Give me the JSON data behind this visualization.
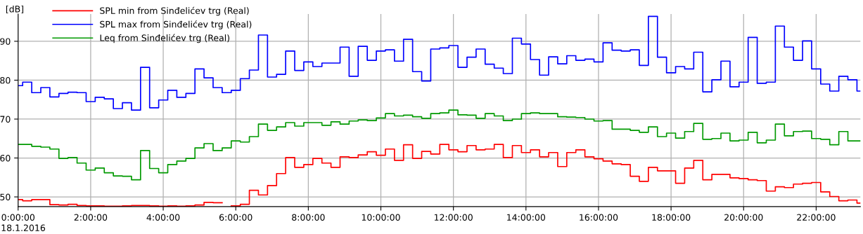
{
  "chart_data": {
    "type": "step",
    "ylabel": "[dB]",
    "x": [
      0,
      0.125,
      0.375,
      0.625,
      0.875,
      1.125,
      1.375,
      1.625,
      1.875,
      2.125,
      2.375,
      2.625,
      2.875,
      3.125,
      3.375,
      3.625,
      3.875,
      4.125,
      4.375,
      4.625,
      4.875,
      5.125,
      5.375,
      5.625,
      5.875,
      6.125,
      6.375,
      6.625,
      6.875,
      7.125,
      7.375,
      7.625,
      7.875,
      8.125,
      8.375,
      8.625,
      8.875,
      9.125,
      9.375,
      9.625,
      9.875,
      10.125,
      10.375,
      10.625,
      10.875,
      11.125,
      11.375,
      11.625,
      11.875,
      12.125,
      12.375,
      12.625,
      12.875,
      13.125,
      13.375,
      13.625,
      13.875,
      14.125,
      14.375,
      14.625,
      14.875,
      15.125,
      15.375,
      15.625,
      15.875,
      16.125,
      16.375,
      16.625,
      16.875,
      17.125,
      17.375,
      17.625,
      17.875,
      18.125,
      18.375,
      18.625,
      18.875,
      19.125,
      19.375,
      19.625,
      19.875,
      20.125,
      20.375,
      20.625,
      20.875,
      21.125,
      21.375,
      21.625,
      21.875,
      22.125,
      22.375,
      22.625,
      22.875,
      23.125
    ],
    "series": [
      {
        "name": "SPL min from Sinđelićev trg (Real)",
        "color": "#ff0000",
        "values": [
          49.3,
          49.0,
          49.3,
          49.3,
          48.0,
          47.9,
          48.1,
          47.8,
          47.7,
          47.7,
          47.6,
          47.6,
          47.7,
          47.8,
          47.8,
          47.7,
          47.6,
          47.7,
          47.6,
          47.7,
          47.9,
          48.6,
          48.5,
          null,
          47.7,
          48.1,
          51.7,
          50.5,
          52.9,
          56.0,
          60.1,
          57.6,
          58.3,
          59.9,
          58.7,
          57.6,
          60.3,
          60.1,
          60.8,
          61.6,
          60.7,
          62.3,
          59.4,
          63.4,
          59.9,
          61.7,
          61.0,
          63.5,
          62.1,
          61.6,
          63.2,
          62.1,
          62.3,
          63.5,
          60.1,
          63.2,
          61.4,
          62.1,
          60.3,
          61.4,
          57.8,
          61.4,
          62.1,
          60.3,
          59.8,
          59.2,
          58.5,
          58.3,
          55.3,
          54.0,
          57.6,
          56.7,
          56.7,
          53.5,
          57.4,
          59.4,
          54.4,
          55.8,
          55.8,
          54.9,
          54.7,
          54.4,
          54.2,
          51.5,
          52.6,
          52.4,
          53.3,
          53.5,
          53.7,
          51.3,
          50.1,
          49.0,
          49.2,
          48.4
        ]
      },
      {
        "name": "SPL max from Sinđelićev trg (Real)",
        "color": "#0000ff",
        "values": [
          78.6,
          79.5,
          76.8,
          78.1,
          75.7,
          76.6,
          76.9,
          76.8,
          74.5,
          75.6,
          75.2,
          72.7,
          74.2,
          72.3,
          83.3,
          72.9,
          74.9,
          77.4,
          75.6,
          76.6,
          82.9,
          80.6,
          78.1,
          76.8,
          77.4,
          80.4,
          82.6,
          91.6,
          80.8,
          81.5,
          87.5,
          82.5,
          84.7,
          83.5,
          84.4,
          84.4,
          88.5,
          81.0,
          88.7,
          85.1,
          87.5,
          87.8,
          84.9,
          90.5,
          82.2,
          79.8,
          88.0,
          88.3,
          88.9,
          83.3,
          85.9,
          88.0,
          84.1,
          83.1,
          81.7,
          90.8,
          89.3,
          85.3,
          81.3,
          86.0,
          84.2,
          86.3,
          85.1,
          85.4,
          84.7,
          89.6,
          87.7,
          87.5,
          87.8,
          83.8,
          96.4,
          85.9,
          81.9,
          83.5,
          82.9,
          87.2,
          77.0,
          80.1,
          84.9,
          78.3,
          79.5,
          91.0,
          79.2,
          79.5,
          93.9,
          88.5,
          85.1,
          90.1,
          82.9,
          79.0,
          77.2,
          81.0,
          80.1,
          77.2
        ]
      },
      {
        "name": "Leq from Sinđelićev trg (Real)",
        "color": "#009900",
        "values": [
          63.5,
          63.5,
          63.0,
          62.8,
          62.3,
          59.9,
          60.1,
          58.7,
          56.9,
          57.4,
          56.2,
          55.4,
          55.3,
          54.4,
          61.9,
          57.3,
          56.2,
          58.3,
          59.2,
          59.9,
          62.6,
          63.7,
          61.9,
          62.6,
          64.4,
          64.1,
          65.5,
          68.7,
          67.1,
          68.0,
          69.1,
          68.2,
          69.1,
          69.1,
          68.4,
          69.3,
          68.7,
          69.5,
          69.8,
          69.6,
          70.3,
          71.4,
          70.8,
          71.0,
          70.6,
          70.2,
          71.4,
          71.6,
          72.3,
          71.1,
          71.0,
          70.2,
          71.4,
          70.8,
          69.6,
          70.0,
          71.4,
          71.6,
          71.4,
          71.4,
          70.6,
          70.5,
          70.4,
          70.0,
          69.5,
          69.6,
          67.4,
          67.4,
          67.1,
          66.6,
          68.0,
          65.5,
          66.4,
          65.1,
          66.8,
          68.9,
          64.8,
          65.0,
          66.4,
          64.4,
          64.6,
          66.6,
          63.9,
          64.6,
          68.7,
          65.7,
          66.8,
          66.9,
          65.0,
          64.8,
          63.4,
          66.8,
          64.4,
          64.4
        ]
      }
    ],
    "xlim": [
      0,
      23.22
    ],
    "xticks": [
      {
        "value": 0,
        "label": "0:00:00"
      },
      {
        "value": 2,
        "label": "2:00:00"
      },
      {
        "value": 4,
        "label": "4:00:00"
      },
      {
        "value": 6,
        "label": "6:00:00"
      },
      {
        "value": 8,
        "label": "8:00:00"
      },
      {
        "value": 10,
        "label": "10:00:00"
      },
      {
        "value": 12,
        "label": "12:00:00"
      },
      {
        "value": 14,
        "label": "14:00:00"
      },
      {
        "value": 16,
        "label": "16:00:00"
      },
      {
        "value": 18,
        "label": "18:00:00"
      },
      {
        "value": 20,
        "label": "20:00:00"
      },
      {
        "value": 22,
        "label": "22:00:00"
      }
    ],
    "ylim": [
      47.5,
      97
    ],
    "yticks": [
      50,
      60,
      70,
      80,
      90
    ],
    "grid": true,
    "legend": "top left",
    "annotations": [
      "18.1.2016"
    ]
  }
}
